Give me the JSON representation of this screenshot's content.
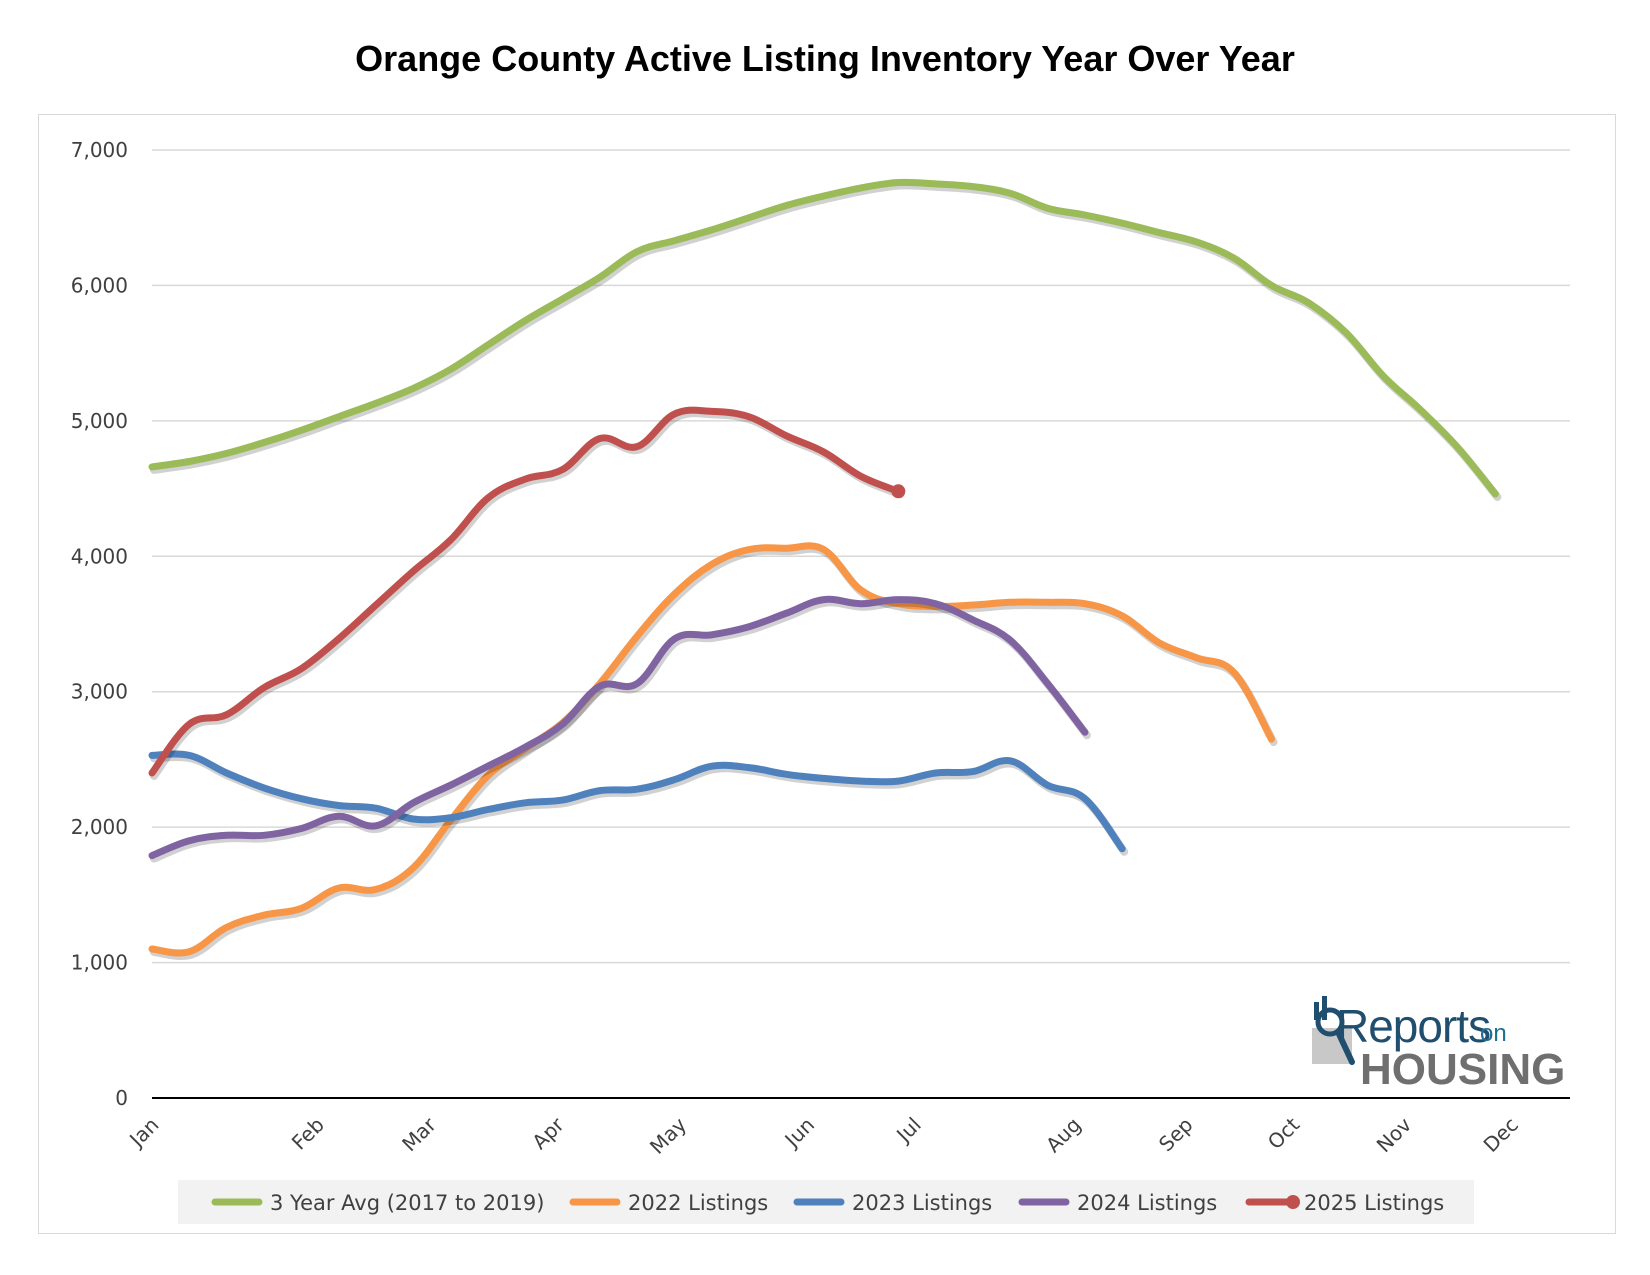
{
  "chart_data": {
    "type": "line",
    "title": "Orange County Active Listing Inventory Year Over Year",
    "xlabel": "",
    "ylabel": "",
    "ylim": [
      0,
      7000
    ],
    "y_ticks": [
      "0",
      "1,000",
      "2,000",
      "3,000",
      "4,000",
      "5,000",
      "6,000",
      "7,000"
    ],
    "y_tick_values": [
      0,
      1000,
      2000,
      3000,
      4000,
      5000,
      6000,
      7000
    ],
    "x_ticks": [
      {
        "label": "Jan",
        "week": 0
      },
      {
        "label": "Feb",
        "week": 4.43
      },
      {
        "label": "Mar",
        "week": 7.43
      },
      {
        "label": "Apr",
        "week": 10.86
      },
      {
        "label": "May",
        "week": 14.14
      },
      {
        "label": "Jun",
        "week": 17.57
      },
      {
        "label": "Jul",
        "week": 20.43
      },
      {
        "label": "Aug",
        "week": 24.71
      },
      {
        "label": "Sep",
        "week": 27.71
      },
      {
        "label": "Oct",
        "week": 30.57
      },
      {
        "label": "Nov",
        "week": 33.57
      },
      {
        "label": "Dec",
        "week": 36.43
      }
    ],
    "x_range_weeks": [
      0,
      38
    ],
    "grid": "horizontal",
    "legend_position": "bottom",
    "series": [
      {
        "name": "3 Year Avg (2017 to 2019)",
        "color": "#9bbb59",
        "points": [
          [
            0,
            4660
          ],
          [
            1,
            4700
          ],
          [
            2,
            4760
          ],
          [
            3,
            4840
          ],
          [
            4,
            4930
          ],
          [
            5,
            5030
          ],
          [
            6,
            5130
          ],
          [
            7,
            5240
          ],
          [
            8,
            5380
          ],
          [
            9,
            5560
          ],
          [
            10,
            5740
          ],
          [
            11,
            5900
          ],
          [
            12,
            6060
          ],
          [
            13,
            6250
          ],
          [
            14,
            6330
          ],
          [
            15,
            6410
          ],
          [
            16,
            6500
          ],
          [
            17,
            6590
          ],
          [
            18,
            6660
          ],
          [
            19,
            6720
          ],
          [
            20,
            6760
          ],
          [
            21,
            6750
          ],
          [
            22,
            6730
          ],
          [
            23,
            6680
          ],
          [
            24,
            6570
          ],
          [
            25,
            6520
          ],
          [
            26,
            6460
          ],
          [
            27,
            6390
          ],
          [
            28,
            6320
          ],
          [
            29,
            6200
          ],
          [
            30,
            6000
          ],
          [
            31,
            5870
          ],
          [
            32,
            5650
          ],
          [
            33,
            5330
          ],
          [
            34,
            5080
          ],
          [
            35,
            4800
          ],
          [
            36,
            4460
          ]
        ]
      },
      {
        "name": "2022 Listings",
        "color": "#f79646",
        "points": [
          [
            0,
            1100
          ],
          [
            1,
            1080
          ],
          [
            2,
            1260
          ],
          [
            3,
            1350
          ],
          [
            4,
            1400
          ],
          [
            5,
            1550
          ],
          [
            6,
            1540
          ],
          [
            7,
            1700
          ],
          [
            8,
            2050
          ],
          [
            9,
            2380
          ],
          [
            10,
            2580
          ],
          [
            11,
            2770
          ],
          [
            12,
            3060
          ],
          [
            13,
            3410
          ],
          [
            14,
            3720
          ],
          [
            15,
            3940
          ],
          [
            16,
            4050
          ],
          [
            17,
            4060
          ],
          [
            18,
            4050
          ],
          [
            19,
            3750
          ],
          [
            20,
            3650
          ],
          [
            21,
            3630
          ],
          [
            22,
            3640
          ],
          [
            23,
            3660
          ],
          [
            24,
            3660
          ],
          [
            25,
            3650
          ],
          [
            26,
            3560
          ],
          [
            27,
            3360
          ],
          [
            28,
            3250
          ],
          [
            29,
            3140
          ],
          [
            30,
            2650
          ]
        ]
      },
      {
        "name": "2023 Listings",
        "color": "#4f81bd",
        "points": [
          [
            0,
            2530
          ],
          [
            1,
            2530
          ],
          [
            2,
            2400
          ],
          [
            3,
            2290
          ],
          [
            4,
            2210
          ],
          [
            5,
            2160
          ],
          [
            6,
            2140
          ],
          [
            7,
            2060
          ],
          [
            8,
            2070
          ],
          [
            9,
            2130
          ],
          [
            10,
            2180
          ],
          [
            11,
            2200
          ],
          [
            12,
            2270
          ],
          [
            13,
            2280
          ],
          [
            14,
            2350
          ],
          [
            15,
            2450
          ],
          [
            16,
            2440
          ],
          [
            17,
            2390
          ],
          [
            18,
            2360
          ],
          [
            19,
            2340
          ],
          [
            20,
            2340
          ],
          [
            21,
            2400
          ],
          [
            22,
            2410
          ],
          [
            23,
            2490
          ],
          [
            24,
            2310
          ],
          [
            25,
            2210
          ],
          [
            26,
            1840
          ]
        ]
      },
      {
        "name": "2024 Listings",
        "color": "#8064a2",
        "points": [
          [
            0,
            1790
          ],
          [
            1,
            1900
          ],
          [
            2,
            1940
          ],
          [
            3,
            1940
          ],
          [
            4,
            1990
          ],
          [
            5,
            2080
          ],
          [
            6,
            2010
          ],
          [
            7,
            2180
          ],
          [
            8,
            2310
          ],
          [
            9,
            2450
          ],
          [
            10,
            2590
          ],
          [
            11,
            2760
          ],
          [
            12,
            3040
          ],
          [
            13,
            3060
          ],
          [
            14,
            3390
          ],
          [
            15,
            3420
          ],
          [
            16,
            3480
          ],
          [
            17,
            3580
          ],
          [
            18,
            3680
          ],
          [
            19,
            3650
          ],
          [
            20,
            3680
          ],
          [
            21,
            3650
          ],
          [
            22,
            3530
          ],
          [
            23,
            3380
          ],
          [
            24,
            3060
          ],
          [
            25,
            2700
          ]
        ]
      },
      {
        "name": "2025 Listings",
        "color": "#c0504d",
        "marker_at_end": true,
        "points": [
          [
            0,
            2400
          ],
          [
            1,
            2760
          ],
          [
            2,
            2830
          ],
          [
            3,
            3030
          ],
          [
            4,
            3170
          ],
          [
            5,
            3390
          ],
          [
            6,
            3640
          ],
          [
            7,
            3890
          ],
          [
            8,
            4120
          ],
          [
            9,
            4430
          ],
          [
            10,
            4570
          ],
          [
            11,
            4640
          ],
          [
            12,
            4870
          ],
          [
            13,
            4810
          ],
          [
            14,
            5050
          ],
          [
            15,
            5070
          ],
          [
            16,
            5030
          ],
          [
            17,
            4890
          ],
          [
            18,
            4770
          ],
          [
            19,
            4590
          ],
          [
            20,
            4480
          ]
        ]
      }
    ]
  },
  "logo": {
    "line1": "Reports",
    "line1_suffix": "on",
    "line2": "HOUSING"
  }
}
